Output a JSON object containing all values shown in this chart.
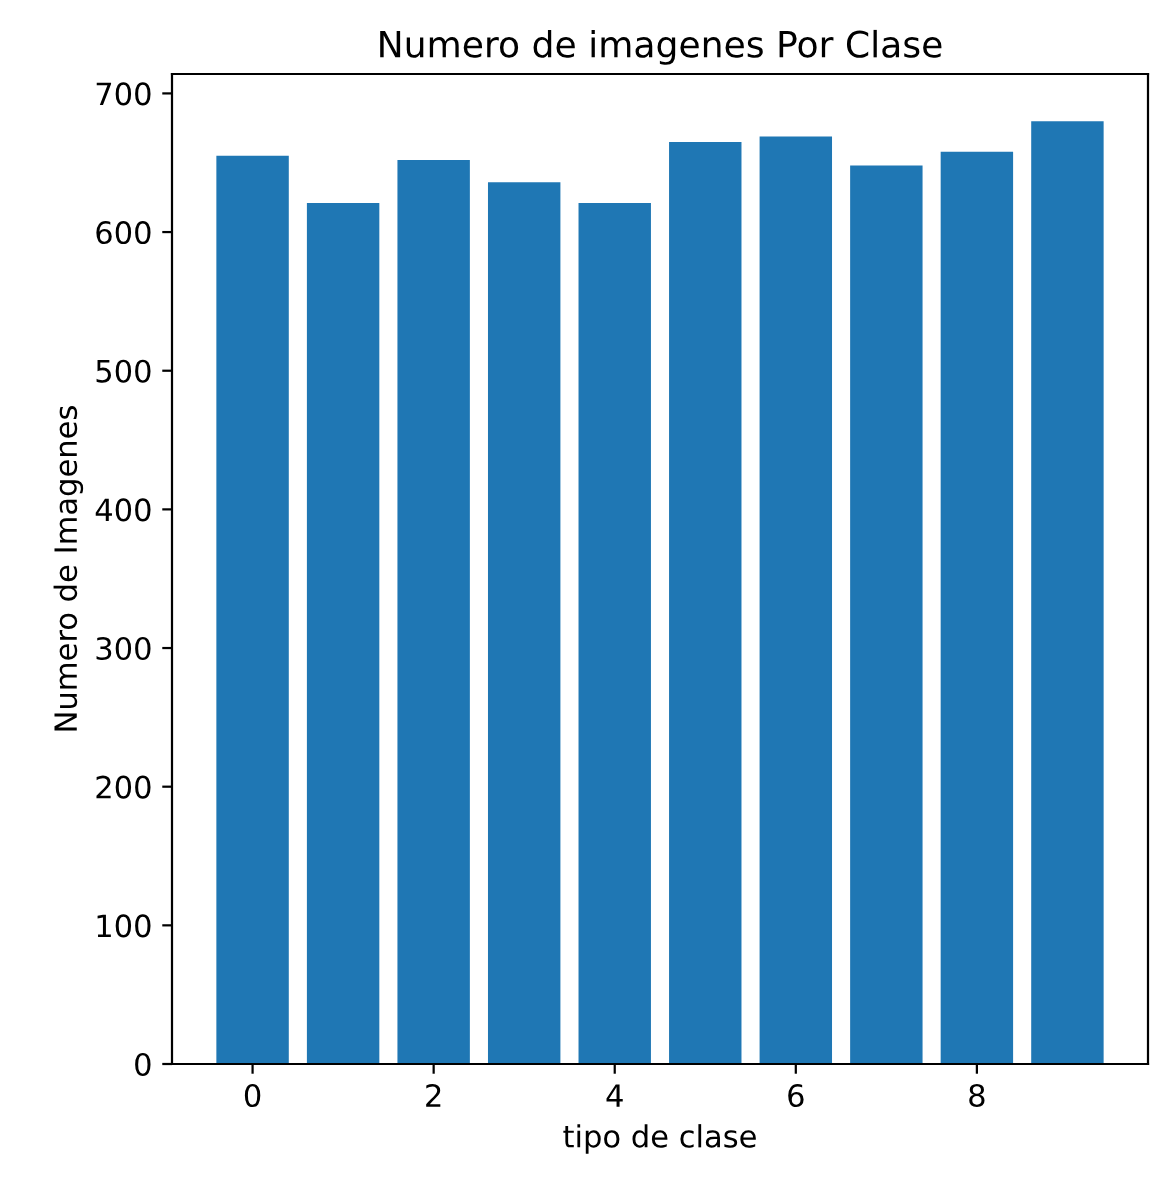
{
  "chart_data": {
    "type": "bar",
    "title": "Numero de imagenes Por Clase",
    "xlabel": "tipo de clase",
    "ylabel": "Numero de Imagenes",
    "x": [
      0,
      1,
      2,
      3,
      4,
      5,
      6,
      7,
      8,
      9
    ],
    "values": [
      655,
      621,
      652,
      636,
      621,
      665,
      669,
      648,
      658,
      680
    ],
    "color": "#1f77b4",
    "xlim": [
      -0.89,
      9.89
    ],
    "ylim": [
      0,
      714
    ],
    "xticks": [
      0,
      2,
      4,
      6,
      8
    ],
    "yticks": [
      0,
      100,
      200,
      300,
      400,
      500,
      600,
      700
    ],
    "grid": false
  }
}
